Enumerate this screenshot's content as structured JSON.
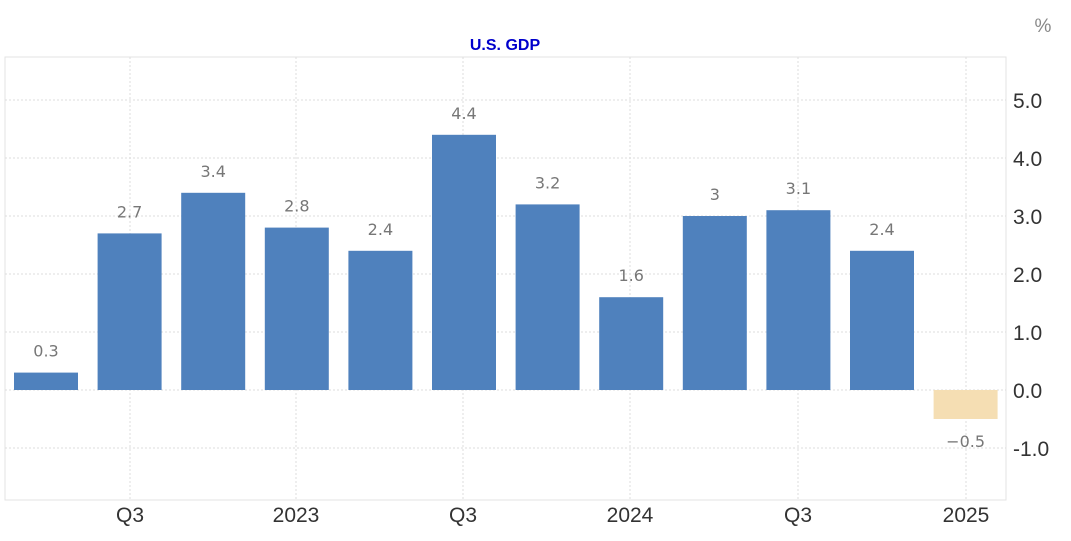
{
  "chart_data": {
    "type": "bar",
    "title": "U.S. GDP",
    "unit": "%",
    "xlabel": "",
    "ylabel": "",
    "ylim": [
      -1.9,
      5.7
    ],
    "yticks": [
      "5.0",
      "4.0",
      "3.0",
      "2.0",
      "1.0",
      "0.0",
      "-1.0"
    ],
    "ytick_values": [
      5,
      4,
      3,
      2,
      1,
      0,
      -1
    ],
    "xtick_labels": [
      "Q3",
      "2023",
      "Q3",
      "2024",
      "Q3",
      "2025"
    ],
    "grid": true,
    "series": [
      {
        "values": [
          0.3,
          2.7,
          3.4,
          2.8,
          2.4,
          4.4,
          3.2,
          1.6,
          3,
          3.1,
          2.4,
          -0.5
        ],
        "labels": [
          "0.3",
          "2.7",
          "3.4",
          "2.8",
          "2.4",
          "4.4",
          "3.2",
          "1.6",
          "3",
          "3.1",
          "2.4",
          "−0.5"
        ],
        "color": "#4f81bd",
        "highlight_last": true,
        "highlight_color": "#f5deb3"
      }
    ]
  }
}
